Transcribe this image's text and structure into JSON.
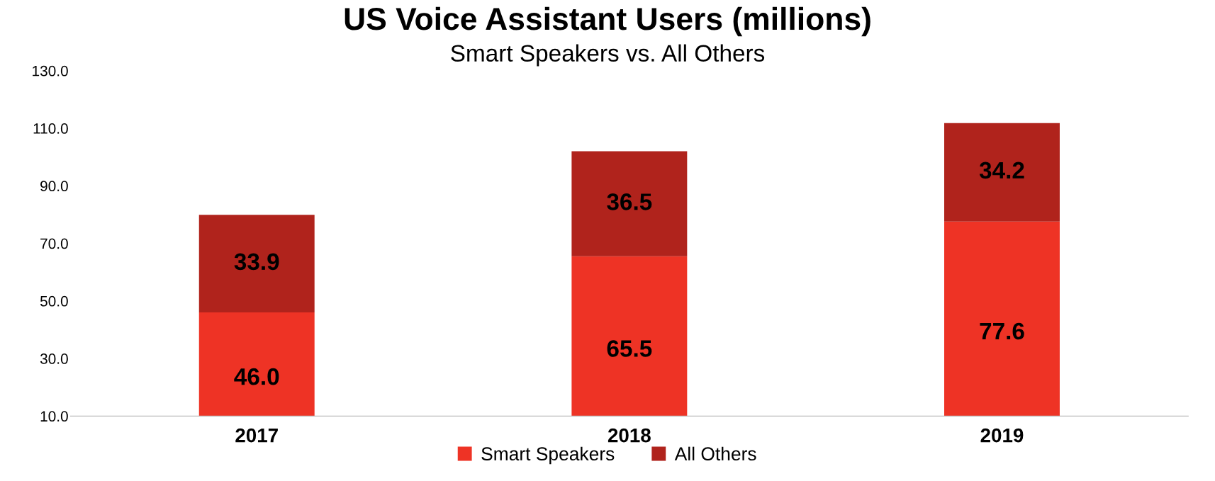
{
  "chart_data": {
    "type": "bar",
    "title": "US Voice Assistant Users (millions)",
    "subtitle": "Smart Speakers vs. All Others",
    "categories": [
      "2017",
      "2018",
      "2019"
    ],
    "series": [
      {
        "name": "Smart Speakers",
        "color": "#ee3325",
        "values": [
          46.0,
          65.5,
          77.6
        ],
        "value_labels": [
          "46.0",
          "65.5",
          "77.6"
        ]
      },
      {
        "name": "All Others",
        "color": "#b0231c",
        "values": [
          33.9,
          36.5,
          34.2
        ],
        "value_labels": [
          "33.9",
          "36.5",
          "34.2"
        ]
      }
    ],
    "stacked": true,
    "legend": "bottom",
    "grid": false,
    "ylim": [
      10,
      130
    ],
    "yticks": [
      {
        "value": 10,
        "label": "10.0"
      },
      {
        "value": 30,
        "label": "30.0"
      },
      {
        "value": 50,
        "label": "50.0"
      },
      {
        "value": 70,
        "label": "70.0"
      },
      {
        "value": 90,
        "label": "90.0"
      },
      {
        "value": 110,
        "label": "110.0"
      },
      {
        "value": 130,
        "label": "130.0"
      }
    ]
  }
}
